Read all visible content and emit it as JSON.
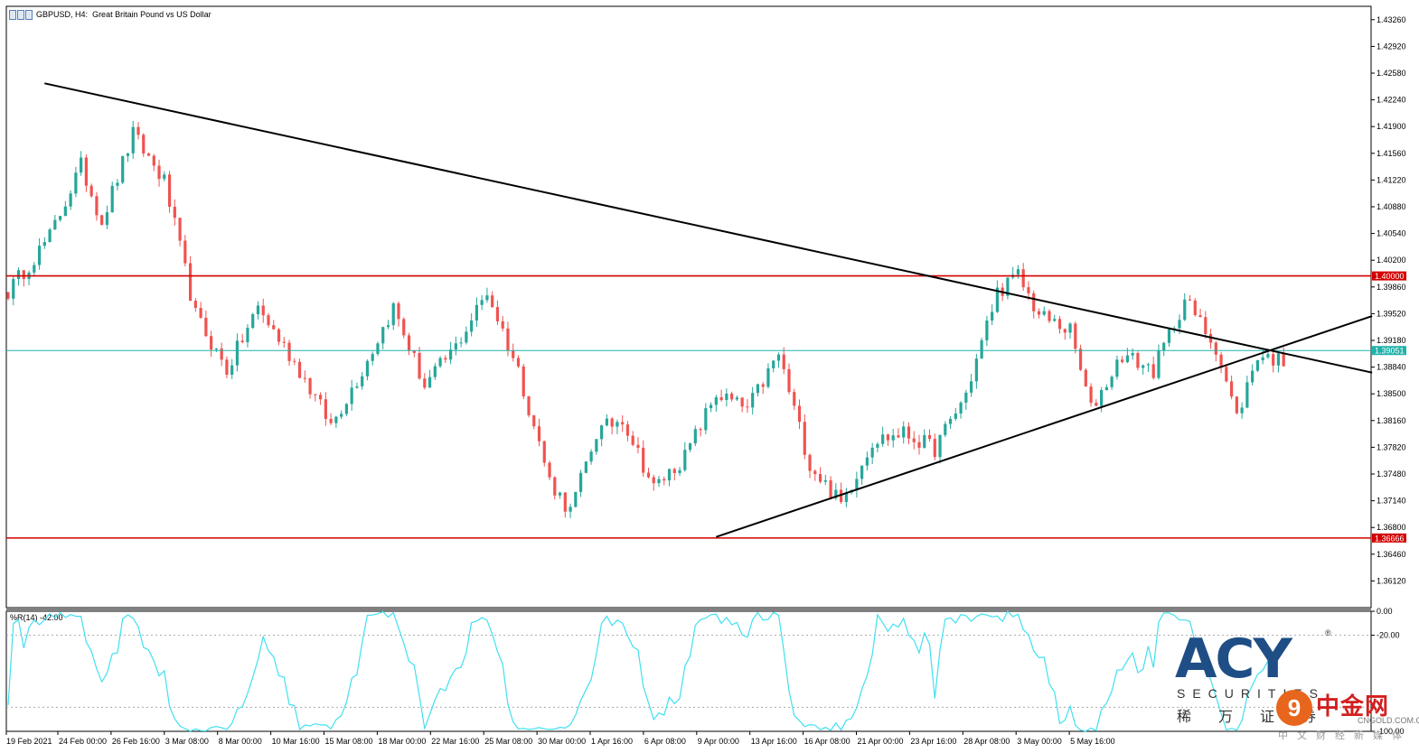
{
  "window": {
    "symbol": "GBPUSD",
    "timeframe": "H4",
    "description": "Great Britain Pound vs US Dollar",
    "icon": "chart-window-icon"
  },
  "chart_data": {
    "type": "candlestick",
    "ylim": [
      1.3578,
      1.4343
    ],
    "y_ticks": [
      "1.43260",
      "1.42920",
      "1.42580",
      "1.42240",
      "1.41900",
      "1.41560",
      "1.41220",
      "1.40880",
      "1.40540",
      "1.40200",
      "1.39860",
      "1.39520",
      "1.39180",
      "1.38840",
      "1.38500",
      "1.38160",
      "1.37820",
      "1.37480",
      "1.37140",
      "1.36800",
      "1.36460",
      "1.36120"
    ],
    "x_ticks": [
      "19 Feb 2021",
      "24 Feb 00:00",
      "26 Feb 16:00",
      "3 Mar 08:00",
      "8 Mar 00:00",
      "10 Mar 16:00",
      "15 Mar 08:00",
      "18 Mar 00:00",
      "22 Mar 16:00",
      "25 Mar 08:00",
      "30 Mar 00:00",
      "1 Apr 16:00",
      "6 Apr 08:00",
      "9 Apr 00:00",
      "13 Apr 16:00",
      "16 Apr 08:00",
      "21 Apr 00:00",
      "23 Apr 16:00",
      "28 Apr 08:00",
      "3 May 00:00",
      "5 May 16:00"
    ],
    "bars": 246,
    "price_path": [
      [
        0,
        1.398
      ],
      [
        8,
        1.405
      ],
      [
        14,
        1.414
      ],
      [
        18,
        1.407
      ],
      [
        24,
        1.418
      ],
      [
        30,
        1.412
      ],
      [
        36,
        1.395
      ],
      [
        42,
        1.388
      ],
      [
        48,
        1.396
      ],
      [
        56,
        1.388
      ],
      [
        62,
        1.381
      ],
      [
        68,
        1.388
      ],
      [
        74,
        1.396
      ],
      [
        80,
        1.386
      ],
      [
        86,
        1.391
      ],
      [
        92,
        1.398
      ],
      [
        98,
        1.388
      ],
      [
        104,
        1.374
      ],
      [
        108,
        1.37
      ],
      [
        113,
        1.38
      ],
      [
        118,
        1.382
      ],
      [
        124,
        1.373
      ],
      [
        130,
        1.377
      ],
      [
        136,
        1.385
      ],
      [
        142,
        1.383
      ],
      [
        148,
        1.39
      ],
      [
        154,
        1.376
      ],
      [
        160,
        1.371
      ],
      [
        166,
        1.379
      ],
      [
        172,
        1.38
      ],
      [
        178,
        1.378
      ],
      [
        184,
        1.385
      ],
      [
        190,
        1.398
      ],
      [
        194,
        1.4
      ],
      [
        198,
        1.395
      ],
      [
        204,
        1.393
      ],
      [
        208,
        1.383
      ],
      [
        214,
        1.39
      ],
      [
        220,
        1.388
      ],
      [
        226,
        1.397
      ],
      [
        232,
        1.391
      ],
      [
        236,
        1.382
      ],
      [
        240,
        1.39
      ],
      [
        246,
        1.389
      ],
      [
        252,
        1.391
      ],
      [
        255,
        1.3905
      ]
    ],
    "horizontal_lines": [
      {
        "price": 1.4,
        "label": "1.40000",
        "color": "#d40000"
      },
      {
        "price": 1.36666,
        "label": "1.36666",
        "color": "#d40000"
      },
      {
        "price": 1.39051,
        "label": "1.39051",
        "color": "#20b2aa"
      }
    ],
    "trendlines": [
      {
        "from": [
          7,
          1.4245
        ],
        "to": [
          262,
          1.3877
        ]
      },
      {
        "from": [
          136,
          1.3668
        ],
        "to": [
          262,
          1.3949
        ]
      }
    ],
    "colors": {
      "up": "#26a69a",
      "down": "#ef5350",
      "indicator": "#40e0f0",
      "grid": "#c0c0c0"
    },
    "indicator": {
      "label": "%R(14) -42.00",
      "ylim": [
        -100,
        0
      ],
      "y_ticks": [
        "0.00",
        "-20.00",
        "-100.00"
      ],
      "levels": [
        -20,
        -80
      ]
    }
  },
  "logo": {
    "text": "ACY",
    "reg": "®",
    "subtitle": "SECURITIES",
    "cn": "稀万证券"
  },
  "watermark": {
    "symbol": "9",
    "text": "中金网",
    "domain": "CNGOLD.COM.CN",
    "sub": "中文财经新媒体"
  }
}
